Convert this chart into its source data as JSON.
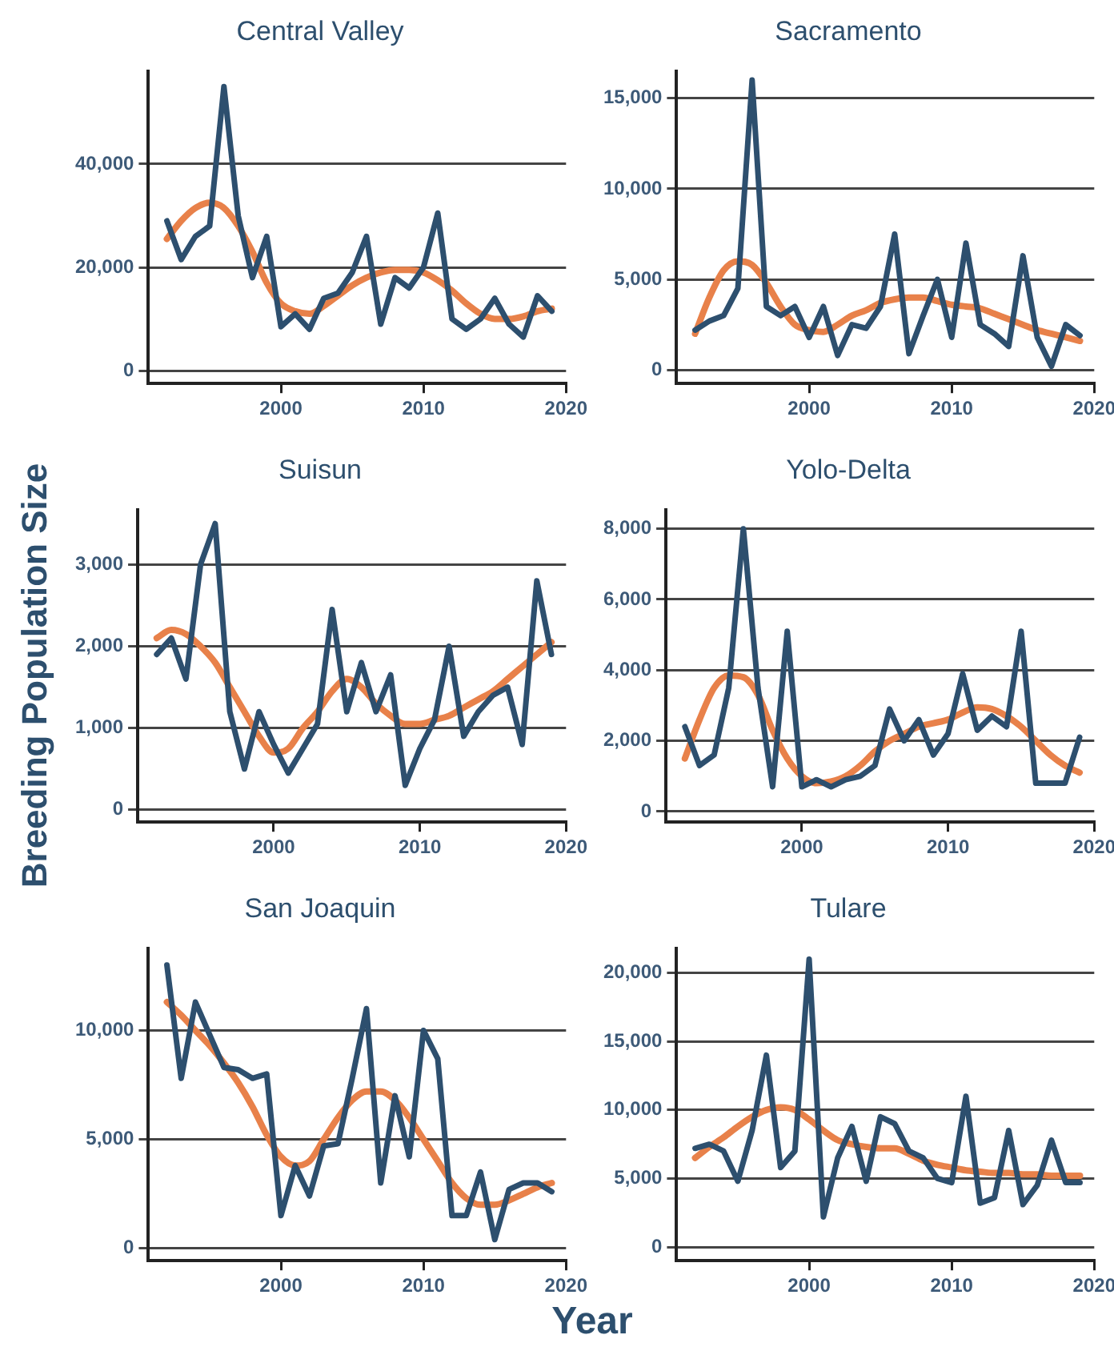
{
  "chart_data": [
    {
      "type": "line",
      "title": "Central Valley",
      "ylabel": "Breeding Population Size",
      "x": [
        1992,
        1993,
        1994,
        1995,
        1996,
        1997,
        1998,
        1999,
        2000,
        2001,
        2002,
        2003,
        2004,
        2005,
        2006,
        2007,
        2008,
        2009,
        2010,
        2011,
        2012,
        2013,
        2014,
        2015,
        2016,
        2017,
        2018,
        2019
      ],
      "xlim": [
        1990.7,
        2020
      ],
      "xticks": [
        2000,
        2010,
        2020
      ],
      "ylim": [
        -2500,
        58000
      ],
      "yticks": [
        {
          "value": 0,
          "label": "0"
        },
        {
          "value": 20000,
          "label": "20,000"
        },
        {
          "value": 40000,
          "label": "40,000"
        }
      ],
      "grid": "y",
      "legend": false,
      "marker": "none",
      "series": [
        {
          "color": "#2d4f6e",
          "values": [
            29000,
            21500,
            26000,
            28000,
            55000,
            30000,
            18000,
            26000,
            8500,
            11000,
            8000,
            14000,
            15000,
            19000,
            26000,
            9000,
            18000,
            16000,
            20000,
            30500,
            10000,
            8000,
            10000,
            14000,
            9000,
            6500,
            14500,
            11500
          ]
        },
        {
          "color": "#e8814a",
          "values": [
            25500,
            29000,
            31500,
            32500,
            31500,
            28000,
            23000,
            17000,
            13000,
            11500,
            11000,
            12500,
            14500,
            16500,
            18000,
            19000,
            19500,
            19500,
            19000,
            17500,
            15500,
            13000,
            11000,
            10000,
            10000,
            10500,
            11500,
            12000
          ]
        }
      ]
    },
    {
      "type": "line",
      "title": "Sacramento",
      "x": [
        1992,
        1993,
        1994,
        1995,
        1996,
        1997,
        1998,
        1999,
        2000,
        2001,
        2002,
        2003,
        2004,
        2005,
        2006,
        2007,
        2008,
        2009,
        2010,
        2011,
        2012,
        2013,
        2014,
        2015,
        2016,
        2017,
        2018,
        2019
      ],
      "xlim": [
        1990.7,
        2020
      ],
      "xticks": [
        2000,
        2010,
        2020
      ],
      "ylim": [
        -750,
        16500
      ],
      "yticks": [
        {
          "value": 0,
          "label": "0"
        },
        {
          "value": 5000,
          "label": "5,000"
        },
        {
          "value": 10000,
          "label": "10,000"
        },
        {
          "value": 15000,
          "label": "15,000"
        }
      ],
      "grid": "y",
      "legend": false,
      "marker": "none",
      "series": [
        {
          "color": "#2d4f6e",
          "values": [
            2200,
            2700,
            3000,
            4500,
            16000,
            3500,
            3000,
            3500,
            1800,
            3500,
            800,
            2500,
            2300,
            3500,
            7500,
            900,
            3000,
            5000,
            1800,
            7000,
            2500,
            2000,
            1300,
            6300,
            1800,
            200,
            2500,
            1900
          ]
        },
        {
          "color": "#e8814a",
          "values": [
            2000,
            4000,
            5500,
            6000,
            5800,
            4800,
            3500,
            2500,
            2200,
            2100,
            2500,
            3000,
            3300,
            3700,
            3900,
            4000,
            4000,
            3800,
            3600,
            3500,
            3400,
            3100,
            2800,
            2500,
            2200,
            2000,
            1800,
            1600
          ]
        }
      ]
    },
    {
      "type": "line",
      "title": "Suisun",
      "x": [
        1992,
        1993,
        1994,
        1995,
        1996,
        1997,
        1998,
        1999,
        2000,
        2001,
        2002,
        2003,
        2004,
        2005,
        2006,
        2007,
        2008,
        2009,
        2010,
        2011,
        2012,
        2013,
        2014,
        2015,
        2016,
        2017,
        2018,
        2019
      ],
      "xlim": [
        1990.7,
        2020
      ],
      "xticks": [
        2000,
        2010,
        2020
      ],
      "ylim": [
        -150,
        3670
      ],
      "yticks": [
        {
          "value": 0,
          "label": "0"
        },
        {
          "value": 1000,
          "label": "1,000"
        },
        {
          "value": 2000,
          "label": "2,000"
        },
        {
          "value": 3000,
          "label": "3,000"
        }
      ],
      "grid": "y",
      "legend": false,
      "marker": "none",
      "series": [
        {
          "color": "#2d4f6e",
          "values": [
            1900,
            2100,
            1600,
            3000,
            3500,
            1200,
            500,
            1200,
            800,
            450,
            750,
            1050,
            2450,
            1200,
            1800,
            1200,
            1650,
            300,
            750,
            1100,
            2000,
            900,
            1200,
            1400,
            1500,
            800,
            2800,
            1900
          ]
        },
        {
          "color": "#e8814a",
          "values": [
            2100,
            2200,
            2150,
            2000,
            1800,
            1500,
            1200,
            900,
            700,
            750,
            1000,
            1200,
            1450,
            1600,
            1500,
            1300,
            1150,
            1050,
            1050,
            1100,
            1150,
            1250,
            1350,
            1450,
            1600,
            1750,
            1900,
            2050
          ]
        }
      ]
    },
    {
      "type": "line",
      "title": "Yolo-Delta",
      "x": [
        1992,
        1993,
        1994,
        1995,
        1996,
        1997,
        1998,
        1999,
        2000,
        2001,
        2002,
        2003,
        2004,
        2005,
        2006,
        2007,
        2008,
        2009,
        2010,
        2011,
        2012,
        2013,
        2014,
        2015,
        2016,
        2017,
        2018,
        2019
      ],
      "xlim": [
        1990.7,
        2020
      ],
      "xticks": [
        2000,
        2010,
        2020
      ],
      "ylim": [
        -300,
        8540
      ],
      "yticks": [
        {
          "value": 0,
          "label": "0"
        },
        {
          "value": 2000,
          "label": "2,000"
        },
        {
          "value": 4000,
          "label": "4,000"
        },
        {
          "value": 6000,
          "label": "6,000"
        },
        {
          "value": 8000,
          "label": "8,000"
        }
      ],
      "grid": "y",
      "legend": false,
      "marker": "none",
      "series": [
        {
          "color": "#2d4f6e",
          "values": [
            2400,
            1300,
            1600,
            3500,
            8000,
            3500,
            700,
            5100,
            700,
            900,
            700,
            900,
            1000,
            1300,
            2900,
            2000,
            2600,
            1600,
            2200,
            3900,
            2300,
            2700,
            2400,
            5100,
            800,
            800,
            800,
            2100
          ]
        },
        {
          "color": "#e8814a",
          "values": [
            1500,
            2600,
            3500,
            3850,
            3800,
            3300,
            2300,
            1500,
            1000,
            800,
            850,
            1000,
            1300,
            1700,
            2000,
            2200,
            2400,
            2500,
            2600,
            2800,
            2950,
            2900,
            2700,
            2400,
            2000,
            1600,
            1300,
            1100
          ]
        }
      ]
    },
    {
      "type": "line",
      "title": "San Joaquin",
      "xlabel": "Year",
      "x": [
        1992,
        1993,
        1994,
        1995,
        1996,
        1997,
        1998,
        1999,
        2000,
        2001,
        2002,
        2003,
        2004,
        2005,
        2006,
        2007,
        2008,
        2009,
        2010,
        2011,
        2012,
        2013,
        2014,
        2015,
        2016,
        2017,
        2018,
        2019
      ],
      "xlim": [
        1990.7,
        2020
      ],
      "xticks": [
        2000,
        2010,
        2020
      ],
      "ylim": [
        -570,
        13770
      ],
      "yticks": [
        {
          "value": 0,
          "label": "0"
        },
        {
          "value": 5000,
          "label": "5,000"
        },
        {
          "value": 10000,
          "label": "10,000"
        }
      ],
      "grid": "y",
      "legend": false,
      "marker": "none",
      "series": [
        {
          "color": "#2d4f6e",
          "values": [
            13000,
            7800,
            11300,
            9800,
            8300,
            8200,
            7800,
            8000,
            1500,
            3800,
            2400,
            4700,
            4800,
            7800,
            11000,
            3000,
            7000,
            4200,
            10000,
            8700,
            1500,
            1500,
            3500,
            400,
            2700,
            3000,
            3000,
            2600
          ]
        },
        {
          "color": "#e8814a",
          "values": [
            11300,
            10700,
            10000,
            9300,
            8500,
            7600,
            6500,
            5200,
            4200,
            3800,
            4000,
            5000,
            6000,
            6800,
            7200,
            7200,
            6800,
            6000,
            5000,
            4000,
            3000,
            2300,
            2000,
            2000,
            2200,
            2500,
            2800,
            3000
          ]
        }
      ]
    },
    {
      "type": "line",
      "title": "Tulare",
      "x": [
        1992,
        1993,
        1994,
        1995,
        1996,
        1997,
        1998,
        1999,
        2000,
        2001,
        2002,
        2003,
        2004,
        2005,
        2006,
        2007,
        2008,
        2009,
        2010,
        2011,
        2012,
        2013,
        2014,
        2015,
        2016,
        2017,
        2018,
        2019
      ],
      "xlim": [
        1990.7,
        2020
      ],
      "xticks": [
        2000,
        2010,
        2020
      ],
      "ylim": [
        -1000,
        21800
      ],
      "yticks": [
        {
          "value": 0,
          "label": "0"
        },
        {
          "value": 5000,
          "label": "5,000"
        },
        {
          "value": 10000,
          "label": "10,000"
        },
        {
          "value": 15000,
          "label": "15,000"
        },
        {
          "value": 20000,
          "label": "20,000"
        }
      ],
      "grid": "y",
      "legend": false,
      "marker": "none",
      "series": [
        {
          "color": "#2d4f6e",
          "values": [
            7200,
            7500,
            7000,
            4800,
            8500,
            14000,
            5800,
            7000,
            21000,
            2200,
            6500,
            8800,
            4800,
            9500,
            9000,
            7000,
            6500,
            5000,
            4700,
            11000,
            3200,
            3600,
            8500,
            3100,
            4500,
            7800,
            4700,
            4700
          ]
        },
        {
          "color": "#e8814a",
          "values": [
            6500,
            7300,
            8000,
            8800,
            9500,
            10000,
            10200,
            10000,
            9300,
            8500,
            7800,
            7500,
            7300,
            7200,
            7200,
            6800,
            6300,
            6000,
            5800,
            5600,
            5500,
            5400,
            5400,
            5300,
            5300,
            5200,
            5200,
            5200
          ]
        }
      ]
    }
  ]
}
